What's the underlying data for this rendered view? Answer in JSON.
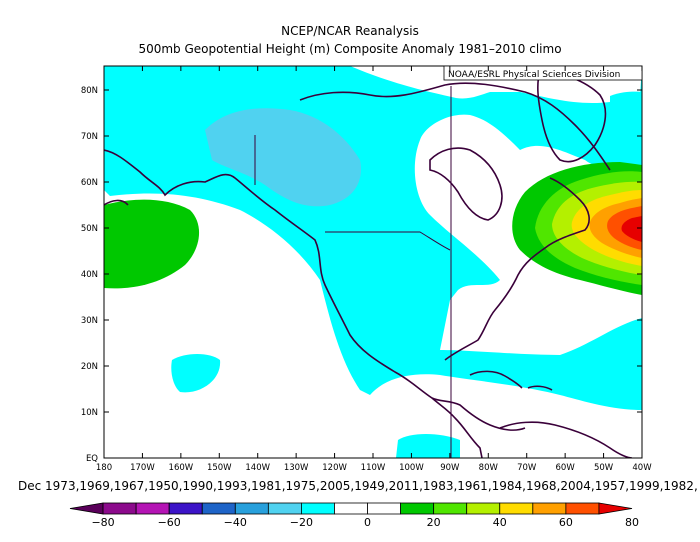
{
  "title": {
    "line1": "NCEP/NCAR Reanalysis",
    "line2": "500mb Geopotential Height (m) Composite Anomaly 1981–2010 climo"
  },
  "credit": "NOAA/ESRL Physical Sciences Division",
  "caption": "Dec 1973,1969,1967,1950,1990,1993,1981,1975,2005,1949,2011,1983,1961,1984,1968,2004,1957,1999,1982,",
  "axes": {
    "lat_labels": [
      "80N",
      "70N",
      "60N",
      "50N",
      "40N",
      "30N",
      "20N",
      "10N",
      "EQ"
    ],
    "lon_labels": [
      "180",
      "170W",
      "160W",
      "150W",
      "140W",
      "130W",
      "120W",
      "110W",
      "100W",
      "90W",
      "80W",
      "70W",
      "60W",
      "50W",
      "40W"
    ]
  },
  "colorbar": {
    "labels": [
      "−80",
      "−60",
      "−40",
      "−20",
      "0",
      "20",
      "40",
      "60",
      "80"
    ],
    "colors": [
      "#5a005a",
      "#8c0a8c",
      "#b414b4",
      "#3c14c8",
      "#1e64c8",
      "#28a0dc",
      "#50d2f0",
      "#00ffff",
      "#ffffff",
      "#ffffff",
      "#00c800",
      "#50e600",
      "#b4f000",
      "#ffdc00",
      "#ffa000",
      "#ff5000",
      "#e60000"
    ]
  }
}
